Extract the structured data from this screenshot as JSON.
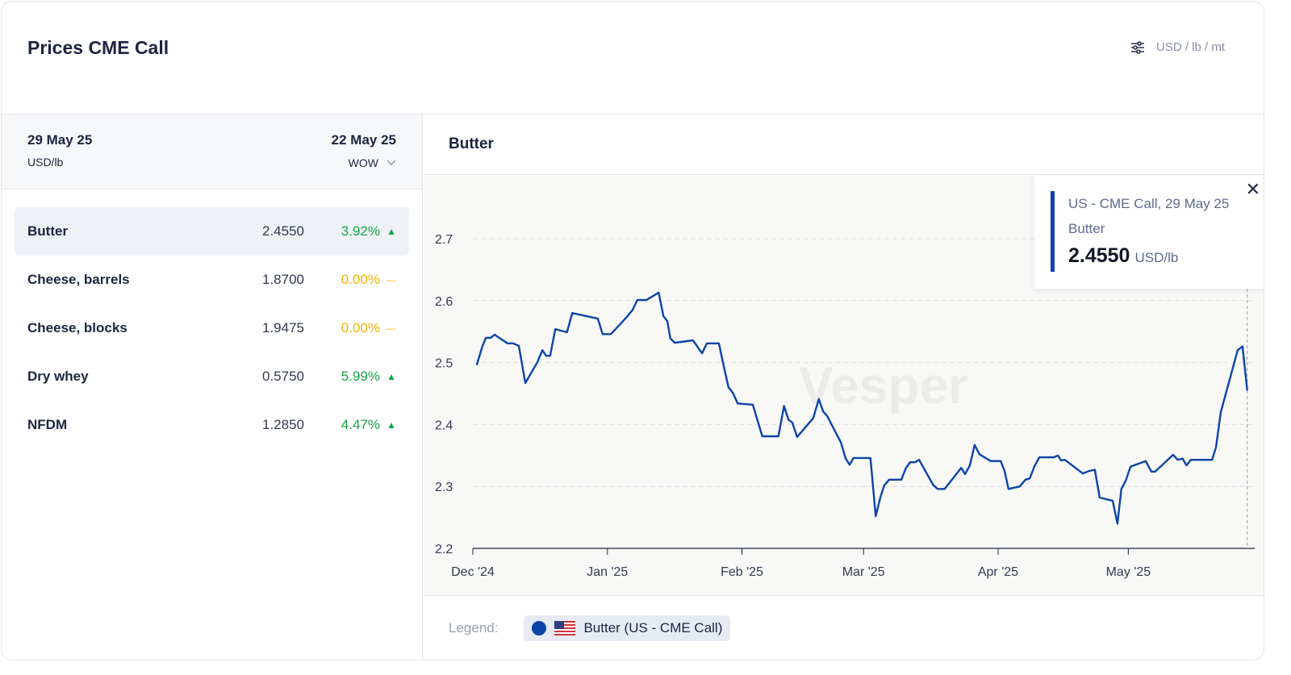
{
  "header": {
    "title": "Prices CME Call",
    "units": "USD / lb / mt",
    "settings_icon": "sliders-icon"
  },
  "left": {
    "date_current": "29 May 25",
    "unit": "USD/lb",
    "date_compare": "22 May 25",
    "compare_mode": "WOW",
    "rows": [
      {
        "name": "Butter",
        "value": "2.4550",
        "change": "3.92%",
        "trend": "up"
      },
      {
        "name": "Cheese, barrels",
        "value": "1.8700",
        "change": "0.00%",
        "trend": "flat"
      },
      {
        "name": "Cheese, blocks",
        "value": "1.9475",
        "change": "0.00%",
        "trend": "flat"
      },
      {
        "name": "Dry whey",
        "value": "0.5750",
        "change": "5.99%",
        "trend": "up"
      },
      {
        "name": "NFDM",
        "value": "1.2850",
        "change": "4.47%",
        "trend": "up"
      }
    ]
  },
  "colors": {
    "up": "#16a34a",
    "flat": "#f0b400",
    "line": "#0b44a8"
  },
  "panel": {
    "title": "Butter",
    "watermark": "Vesper"
  },
  "tooltip": {
    "source": "US - CME Call, 29 May 25",
    "product": "Butter",
    "value": "2.4550",
    "unit": "USD/lb"
  },
  "legend": {
    "label": "Legend:",
    "series": "Butter (US - CME Call)"
  },
  "chart_data": {
    "type": "line",
    "title": "Butter",
    "xlabel": "",
    "ylabel": "USD/lb",
    "ylim": [
      2.2,
      2.75
    ],
    "yticks": [
      "2.2",
      "2.3",
      "2.4",
      "2.5",
      "2.6",
      "2.7"
    ],
    "xticks": [
      {
        "label": "Dec '24",
        "day": 0
      },
      {
        "label": "Jan '25",
        "day": 31
      },
      {
        "label": "Feb '25",
        "day": 62
      },
      {
        "label": "Mar '25",
        "day": 90
      },
      {
        "label": "Apr '25",
        "day": 121
      },
      {
        "label": "May '25",
        "day": 151
      }
    ],
    "x_unit": "days since 1 Dec 2024",
    "xlim": [
      0,
      180
    ],
    "series": [
      {
        "name": "Butter (US - CME Call)",
        "points": [
          [
            0.9,
            2.496
          ],
          [
            2.2,
            2.526
          ],
          [
            3,
            2.54
          ],
          [
            4.1,
            2.54
          ],
          [
            5,
            2.545
          ],
          [
            8,
            2.531
          ],
          [
            9.3,
            2.531
          ],
          [
            10.6,
            2.527
          ],
          [
            12.1,
            2.467
          ],
          [
            14.9,
            2.501
          ],
          [
            16,
            2.52
          ],
          [
            16.9,
            2.511
          ],
          [
            17.8,
            2.511
          ],
          [
            19,
            2.554
          ],
          [
            21.7,
            2.549
          ],
          [
            22.9,
            2.58
          ],
          [
            28.8,
            2.571
          ],
          [
            29.9,
            2.546
          ],
          [
            31.8,
            2.546
          ],
          [
            32.9,
            2.554
          ],
          [
            35.5,
            2.574
          ],
          [
            36.8,
            2.585
          ],
          [
            37.9,
            2.601
          ],
          [
            40,
            2.601
          ],
          [
            42.8,
            2.613
          ],
          [
            43.9,
            2.575
          ],
          [
            44.8,
            2.567
          ],
          [
            45.5,
            2.539
          ],
          [
            46.5,
            2.532
          ],
          [
            50.7,
            2.536
          ],
          [
            52.8,
            2.515
          ],
          [
            53.9,
            2.531
          ],
          [
            56.7,
            2.531
          ],
          [
            57.8,
            2.494
          ],
          [
            58.9,
            2.46
          ],
          [
            59.9,
            2.451
          ],
          [
            61,
            2.434
          ],
          [
            64.5,
            2.432
          ],
          [
            65.4,
            2.411
          ],
          [
            66.7,
            2.381
          ],
          [
            70.4,
            2.381
          ],
          [
            71.7,
            2.43
          ],
          [
            72.7,
            2.408
          ],
          [
            73.6,
            2.403
          ],
          [
            74.7,
            2.38
          ],
          [
            78.4,
            2.41
          ],
          [
            79.7,
            2.441
          ],
          [
            80.7,
            2.421
          ],
          [
            81.6,
            2.414
          ],
          [
            84.8,
            2.371
          ],
          [
            85.9,
            2.345
          ],
          [
            86.8,
            2.335
          ],
          [
            87.7,
            2.346
          ],
          [
            91.6,
            2.346
          ],
          [
            92.8,
            2.252
          ],
          [
            93.9,
            2.283
          ],
          [
            94.8,
            2.302
          ],
          [
            95.9,
            2.311
          ],
          [
            98.7,
            2.311
          ],
          [
            99.8,
            2.33
          ],
          [
            100.7,
            2.339
          ],
          [
            101.9,
            2.339
          ],
          [
            102.8,
            2.343
          ],
          [
            106.1,
            2.302
          ],
          [
            107.1,
            2.296
          ],
          [
            108.7,
            2.296
          ],
          [
            112.5,
            2.33
          ],
          [
            113.4,
            2.32
          ],
          [
            114.5,
            2.334
          ],
          [
            115.6,
            2.367
          ],
          [
            116.7,
            2.352
          ],
          [
            119.3,
            2.341
          ],
          [
            121.6,
            2.341
          ],
          [
            122.5,
            2.325
          ],
          [
            123.4,
            2.296
          ],
          [
            126,
            2.3
          ],
          [
            127.3,
            2.311
          ],
          [
            128.3,
            2.313
          ],
          [
            129.4,
            2.333
          ],
          [
            130.5,
            2.347
          ],
          [
            133.8,
            2.347
          ],
          [
            134.8,
            2.35
          ],
          [
            135.5,
            2.342
          ],
          [
            136.4,
            2.343
          ],
          [
            140.5,
            2.321
          ],
          [
            142,
            2.325
          ],
          [
            143.3,
            2.327
          ],
          [
            144.4,
            2.282
          ],
          [
            147.4,
            2.277
          ],
          [
            148.5,
            2.24
          ],
          [
            149.4,
            2.296
          ],
          [
            150.4,
            2.309
          ],
          [
            151.5,
            2.332
          ],
          [
            155,
            2.341
          ],
          [
            156.3,
            2.324
          ],
          [
            157.2,
            2.324
          ],
          [
            161.3,
            2.351
          ],
          [
            162.4,
            2.343
          ],
          [
            163.5,
            2.345
          ],
          [
            164.4,
            2.334
          ],
          [
            165.4,
            2.343
          ],
          [
            170.3,
            2.343
          ],
          [
            171.2,
            2.363
          ],
          [
            172.3,
            2.42
          ],
          [
            176.2,
            2.52
          ],
          [
            177.3,
            2.526
          ],
          [
            178.4,
            2.455
          ]
        ]
      }
    ]
  }
}
